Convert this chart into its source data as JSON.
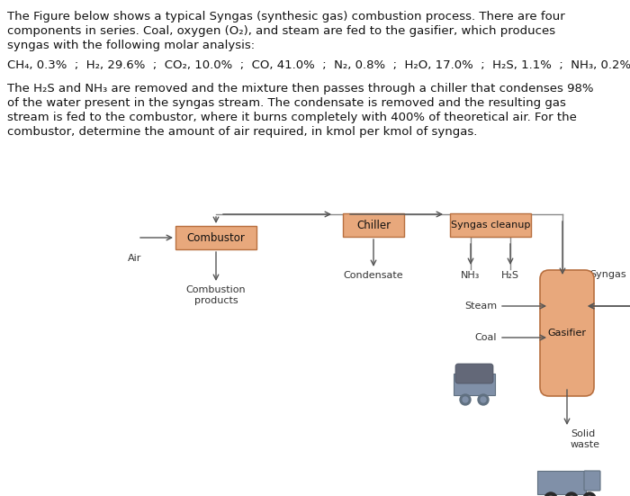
{
  "title_text": [
    "The Figure below shows a typical Syngas (synthesic gas) combustion process. There are four",
    "components in series. Coal, oxygen (O₂), and steam are fed to the gasifier, which produces",
    "syngas with the following molar analysis:"
  ],
  "molar_line": "CH₄, 0.3%  ;  H₂, 29.6%  ;  CO₂, 10.0%  ;  CO, 41.0%  ;  N₂, 0.8%  ;  H₂O, 17.0%  ;  H₂S, 1.1%  ;  NH₃, 0.2%",
  "body_text": [
    "The H₂S and NH₃ are removed and the mixture then passes through a chiller that condenses 98%",
    "of the water present in the syngas stream. The condensate is removed and the resulting gas",
    "stream is fed to the combustor, where it burns completely with 400% of theoretical air. For the",
    "combustor, determine the amount of air required, in kmol per kmol of syngas."
  ],
  "box_color": "#e8a87c",
  "box_edge_color": "#b87040",
  "line_color": "#8a8a8a",
  "arrow_color": "#555555",
  "bg_color": "#ffffff",
  "text_color": "#111111",
  "gasifier_color": "#e8a87c",
  "gasifier_edge": "#b87040"
}
